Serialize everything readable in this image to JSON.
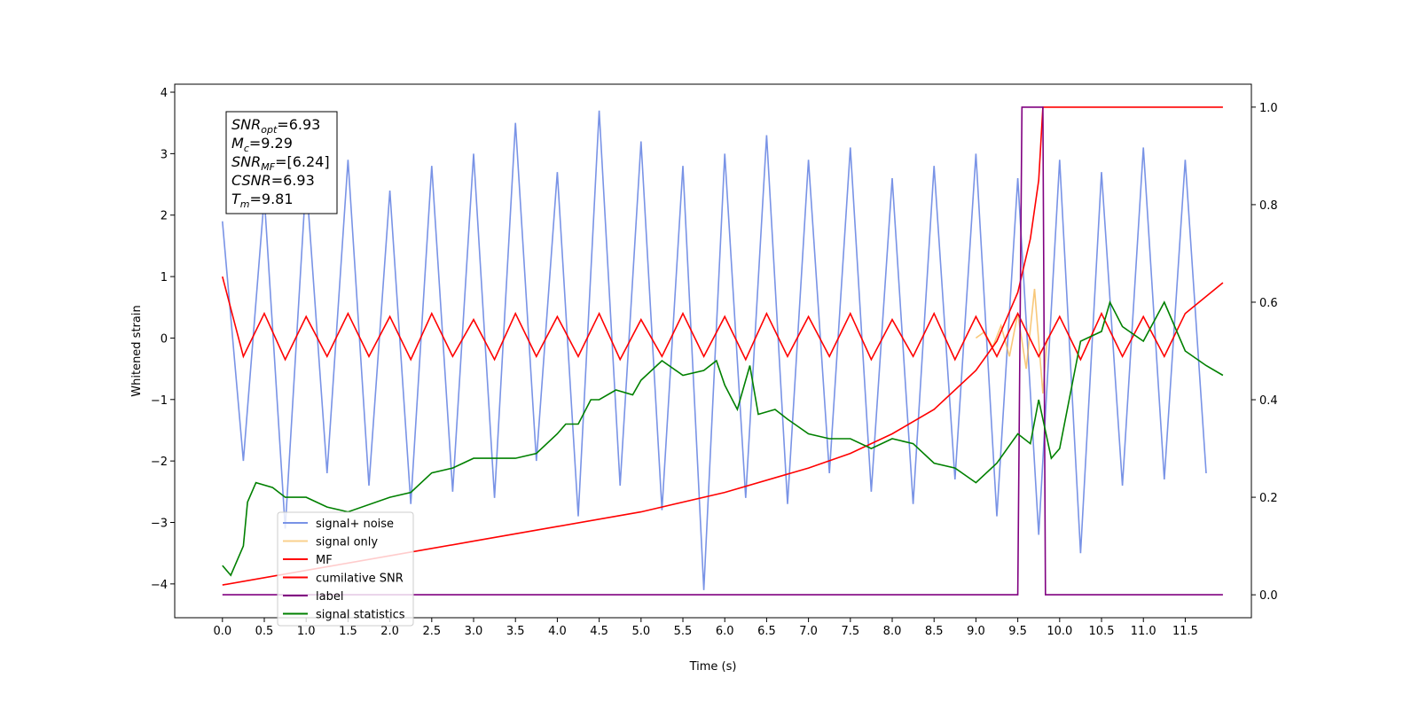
{
  "chart_data": {
    "type": "line",
    "xlabel": "Time (s)",
    "ylabel": "Whitened strain",
    "xlim": [
      -0.57,
      12.29
    ],
    "ylim": [
      -4.55,
      4.13
    ],
    "y2lim": [
      -0.047,
      1.047
    ],
    "xticks": [
      {
        "value": 0,
        "label": "0.0"
      },
      {
        "value": 0.5,
        "label": "0.5"
      },
      {
        "value": 1,
        "label": "1.0"
      },
      {
        "value": 1.5,
        "label": "1.5"
      },
      {
        "value": 2,
        "label": "2.0"
      },
      {
        "value": 2.5,
        "label": "2.5"
      },
      {
        "value": 3,
        "label": "3.0"
      },
      {
        "value": 3.5,
        "label": "3.5"
      },
      {
        "value": 4,
        "label": "4.0"
      },
      {
        "value": 4.5,
        "label": "4.5"
      },
      {
        "value": 5,
        "label": "5.0"
      },
      {
        "value": 5.5,
        "label": "5.5"
      },
      {
        "value": 6,
        "label": "6.0"
      },
      {
        "value": 6.5,
        "label": "6.5"
      },
      {
        "value": 7,
        "label": "7.0"
      },
      {
        "value": 7.5,
        "label": "7.5"
      },
      {
        "value": 8,
        "label": "8.0"
      },
      {
        "value": 8.5,
        "label": "8.5"
      },
      {
        "value": 9,
        "label": "9.0"
      },
      {
        "value": 9.5,
        "label": "9.5"
      },
      {
        "value": 10,
        "label": "10.0"
      },
      {
        "value": 10.5,
        "label": "10.5"
      },
      {
        "value": 11,
        "label": "11.0"
      },
      {
        "value": 11.5,
        "label": "11.5"
      }
    ],
    "yticks": [
      {
        "value": -4,
        "label": "−4"
      },
      {
        "value": -3,
        "label": "−3"
      },
      {
        "value": -2,
        "label": "−2"
      },
      {
        "value": -1,
        "label": "−1"
      },
      0,
      1,
      2,
      3,
      4
    ],
    "y2ticks": [
      {
        "value": 0,
        "label": "0.0"
      },
      {
        "value": 0.2,
        "label": "0.2"
      },
      {
        "value": 0.4,
        "label": "0.4"
      },
      {
        "value": 0.6,
        "label": "0.6"
      },
      {
        "value": 0.8,
        "label": "0.8"
      },
      {
        "value": 1,
        "label": "1.0"
      }
    ],
    "legend": "lower left",
    "annotations": [
      {
        "text": "SNR",
        "sub": "opt",
        "rest": "=6.93"
      },
      {
        "text": "M",
        "sub": "c",
        "rest": "=9.29"
      },
      {
        "text": "SNR",
        "sub": "MF",
        "rest": "=[6.24]"
      },
      {
        "text": "CSNR",
        "sub": "",
        "rest": "=6.93"
      },
      {
        "text": "T",
        "sub": "m",
        "rest": "=9.81"
      }
    ],
    "series": [
      {
        "name": "signal+ noise",
        "color": "#7993e6",
        "axis": "y",
        "x": [
          0,
          0.25,
          0.5,
          0.75,
          1,
          1.25,
          1.5,
          1.75,
          2,
          2.25,
          2.5,
          2.75,
          3,
          3.25,
          3.5,
          3.75,
          4,
          4.25,
          4.5,
          4.75,
          5,
          5.25,
          5.5,
          5.75,
          6,
          6.25,
          6.5,
          6.75,
          7,
          7.25,
          7.5,
          7.75,
          8,
          8.25,
          8.5,
          8.75,
          9,
          9.25,
          9.5,
          9.75,
          10,
          10.25,
          10.5,
          10.75,
          11,
          11.25,
          11.5,
          11.75
        ],
        "values": [
          1.9,
          -2.0,
          2.3,
          -3.1,
          2.6,
          -2.2,
          2.9,
          -2.4,
          2.4,
          -2.7,
          2.8,
          -2.5,
          3.0,
          -2.6,
          3.5,
          -2.0,
          2.7,
          -2.9,
          3.7,
          -2.4,
          3.2,
          -2.8,
          2.8,
          -4.1,
          3.0,
          -2.6,
          3.3,
          -2.7,
          2.9,
          -2.2,
          3.1,
          -2.5,
          2.6,
          -2.7,
          2.8,
          -2.3,
          3.0,
          -2.9,
          2.6,
          -3.2,
          2.9,
          -3.5,
          2.7,
          -2.4,
          3.1,
          -2.3,
          2.9,
          -2.2
        ]
      },
      {
        "name": "signal only",
        "color": "#f5b041",
        "axis": "y",
        "x": [
          9.0,
          9.1,
          9.2,
          9.3,
          9.4,
          9.5,
          9.6,
          9.7,
          9.8,
          9.85
        ],
        "values": [
          0,
          0.1,
          -0.15,
          0.2,
          -0.3,
          0.4,
          -0.5,
          0.8,
          -0.9,
          0
        ]
      },
      {
        "name": "MF",
        "color": "#ff0000",
        "axis": "y",
        "x": [
          0,
          0.25,
          0.5,
          0.75,
          1,
          1.25,
          1.5,
          1.75,
          2,
          2.25,
          2.5,
          2.75,
          3,
          3.25,
          3.5,
          3.75,
          4,
          4.25,
          4.5,
          4.75,
          5,
          5.25,
          5.5,
          5.75,
          6,
          6.25,
          6.5,
          6.75,
          7,
          7.25,
          7.5,
          7.75,
          8,
          8.25,
          8.5,
          8.75,
          9,
          9.25,
          9.5,
          9.75,
          10,
          10.25,
          10.5,
          10.75,
          11,
          11.25,
          11.5,
          11.95
        ],
        "values": [
          1.0,
          -0.3,
          0.4,
          -0.35,
          0.35,
          -0.3,
          0.4,
          -0.3,
          0.35,
          -0.35,
          0.4,
          -0.3,
          0.3,
          -0.35,
          0.4,
          -0.3,
          0.35,
          -0.3,
          0.4,
          -0.35,
          0.3,
          -0.3,
          0.4,
          -0.3,
          0.35,
          -0.35,
          0.4,
          -0.3,
          0.35,
          -0.3,
          0.4,
          -0.35,
          0.3,
          -0.3,
          0.4,
          -0.35,
          0.35,
          -0.3,
          0.4,
          -0.3,
          0.35,
          -0.35,
          0.4,
          -0.3,
          0.35,
          -0.3,
          0.4,
          0.9
        ]
      },
      {
        "name": "cumilative SNR",
        "color": "#ff0000",
        "axis": "y2",
        "x": [
          0,
          1,
          2,
          3,
          4,
          5,
          6,
          7,
          7.5,
          8,
          8.5,
          9,
          9.25,
          9.5,
          9.65,
          9.75,
          9.8,
          10,
          11,
          11.95
        ],
        "values": [
          0.02,
          0.05,
          0.08,
          0.11,
          0.14,
          0.17,
          0.21,
          0.26,
          0.29,
          0.33,
          0.38,
          0.46,
          0.52,
          0.62,
          0.73,
          0.85,
          1.0,
          1.0,
          1.0,
          1.0
        ]
      },
      {
        "name": "label",
        "color": "#800080",
        "axis": "y2",
        "x": [
          0,
          9.5,
          9.55,
          9.8,
          9.83,
          11.95
        ],
        "values": [
          0,
          0,
          1,
          1,
          0,
          0
        ]
      },
      {
        "name": "signal statistics",
        "color": "#008000",
        "axis": "y2",
        "x": [
          0,
          0.1,
          0.25,
          0.3,
          0.4,
          0.6,
          0.75,
          1.0,
          1.25,
          1.5,
          2.0,
          2.25,
          2.5,
          2.75,
          3.0,
          3.25,
          3.5,
          3.75,
          4.0,
          4.1,
          4.25,
          4.4,
          4.5,
          4.7,
          4.9,
          5.0,
          5.25,
          5.5,
          5.75,
          5.9,
          6.0,
          6.15,
          6.3,
          6.4,
          6.6,
          6.75,
          7.0,
          7.25,
          7.5,
          7.75,
          8.0,
          8.25,
          8.5,
          8.75,
          9.0,
          9.25,
          9.5,
          9.65,
          9.75,
          9.9,
          10.0,
          10.25,
          10.5,
          10.6,
          10.75,
          11.0,
          11.25,
          11.5,
          11.75,
          11.95
        ],
        "values": [
          0.06,
          0.04,
          0.1,
          0.19,
          0.23,
          0.22,
          0.2,
          0.2,
          0.18,
          0.17,
          0.2,
          0.21,
          0.25,
          0.26,
          0.28,
          0.28,
          0.28,
          0.29,
          0.33,
          0.35,
          0.35,
          0.4,
          0.4,
          0.42,
          0.41,
          0.44,
          0.48,
          0.45,
          0.46,
          0.48,
          0.43,
          0.38,
          0.47,
          0.37,
          0.38,
          0.36,
          0.33,
          0.32,
          0.32,
          0.3,
          0.32,
          0.31,
          0.27,
          0.26,
          0.23,
          0.27,
          0.33,
          0.31,
          0.4,
          0.28,
          0.3,
          0.52,
          0.54,
          0.6,
          0.55,
          0.52,
          0.6,
          0.5,
          0.47,
          0.45
        ]
      }
    ]
  }
}
